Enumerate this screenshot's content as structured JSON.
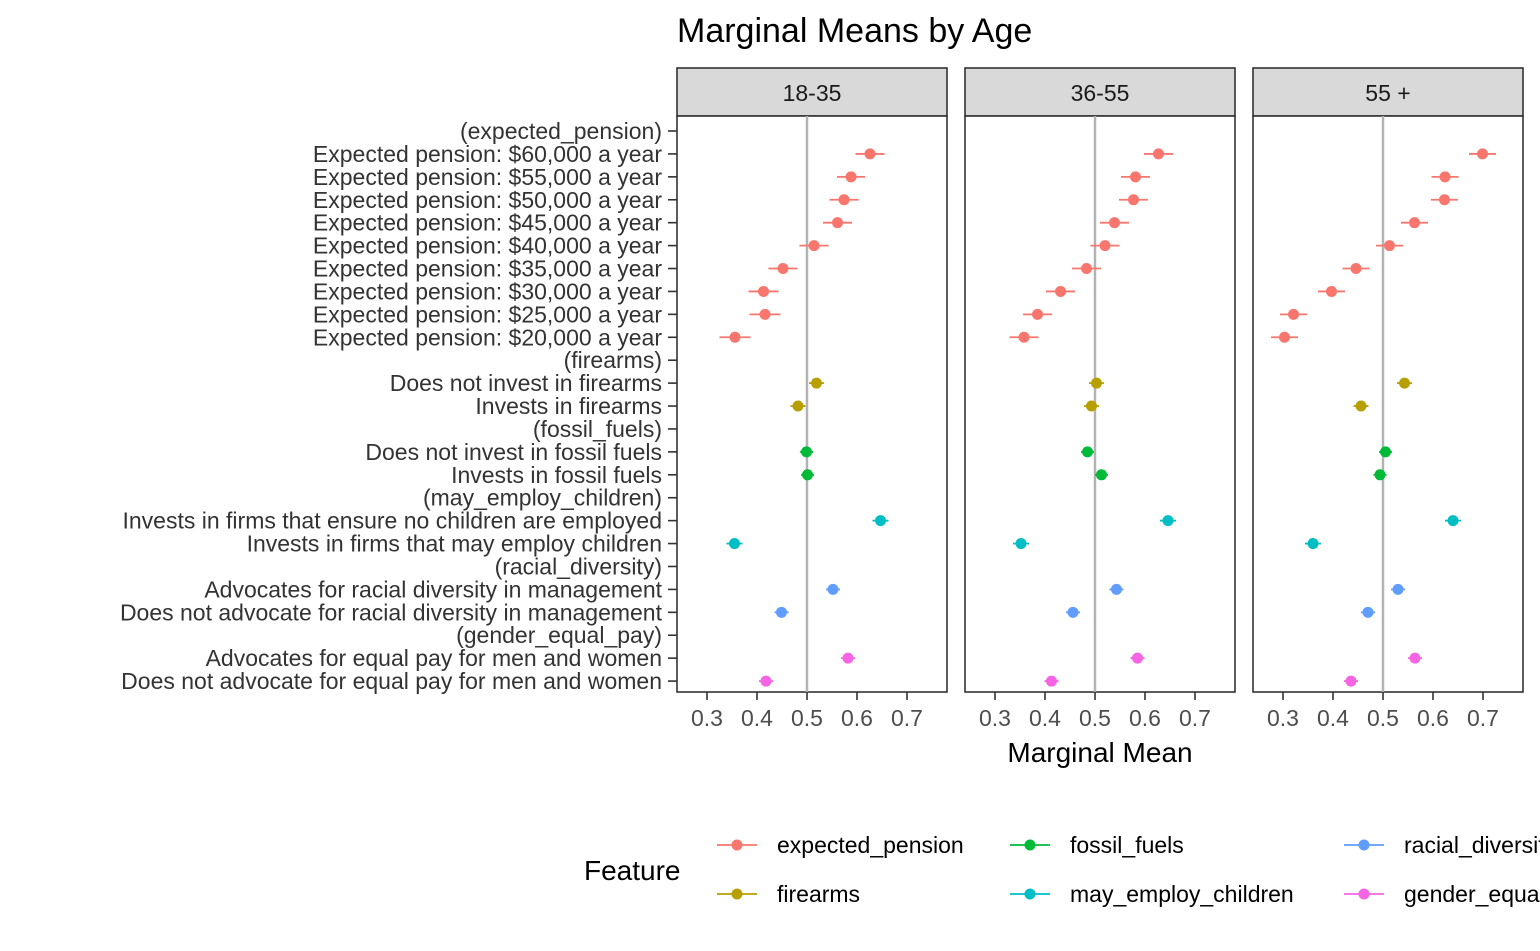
{
  "chart_data": {
    "type": "scatter",
    "title": "Marginal Means by Age",
    "xlabel": "Marginal Mean",
    "ylabel": "",
    "xlim": [
      0.24,
      0.78
    ],
    "x_ticks": [
      0.3,
      0.4,
      0.5,
      0.6,
      0.7
    ],
    "x_tick_labels": [
      "0.3",
      "0.4",
      "0.5",
      "0.6",
      "0.7"
    ],
    "reference_line": 0.5,
    "grid": false,
    "legend_title": "Feature",
    "legend_position": "bottom",
    "levels": [
      {
        "label": "(expected_pension)",
        "feature": "expected_pension",
        "header": true
      },
      {
        "label": "Expected pension: $60,000 a year",
        "feature": "expected_pension"
      },
      {
        "label": "Expected pension: $55,000 a year",
        "feature": "expected_pension"
      },
      {
        "label": "Expected pension: $50,000 a year",
        "feature": "expected_pension"
      },
      {
        "label": "Expected pension: $45,000 a year",
        "feature": "expected_pension"
      },
      {
        "label": "Expected pension: $40,000 a year",
        "feature": "expected_pension"
      },
      {
        "label": "Expected pension: $35,000 a year",
        "feature": "expected_pension"
      },
      {
        "label": "Expected pension: $30,000 a year",
        "feature": "expected_pension"
      },
      {
        "label": "Expected pension: $25,000 a year",
        "feature": "expected_pension"
      },
      {
        "label": "Expected pension: $20,000 a year",
        "feature": "expected_pension"
      },
      {
        "label": "(firearms)",
        "feature": "firearms",
        "header": true
      },
      {
        "label": "Does not invest in firearms",
        "feature": "firearms"
      },
      {
        "label": "Invests in firearms",
        "feature": "firearms"
      },
      {
        "label": "(fossil_fuels)",
        "feature": "fossil_fuels",
        "header": true
      },
      {
        "label": "Does not invest in fossil fuels",
        "feature": "fossil_fuels"
      },
      {
        "label": "Invests in fossil fuels",
        "feature": "fossil_fuels"
      },
      {
        "label": "(may_employ_children)",
        "feature": "may_employ_children",
        "header": true
      },
      {
        "label": "Invests in firms that ensure no children are employed",
        "feature": "may_employ_children"
      },
      {
        "label": "Invests in firms that may employ children",
        "feature": "may_employ_children"
      },
      {
        "label": "(racial_diversity)",
        "feature": "racial_diversity",
        "header": true
      },
      {
        "label": "Advocates for racial diversity in management",
        "feature": "racial_diversity"
      },
      {
        "label": "Does not advocate for racial diversity in management",
        "feature": "racial_diversity"
      },
      {
        "label": "(gender_equal_pay)",
        "feature": "gender_equal_pay",
        "header": true
      },
      {
        "label": "Advocates for equal pay for men and women",
        "feature": "gender_equal_pay"
      },
      {
        "label": "Does not advocate for equal pay for men and women",
        "feature": "gender_equal_pay"
      }
    ],
    "panels": [
      {
        "name": "18-35",
        "points": [
          {
            "level": 1,
            "estimate": 0.626,
            "lower": 0.597,
            "upper": 0.655
          },
          {
            "level": 2,
            "estimate": 0.588,
            "lower": 0.56,
            "upper": 0.616
          },
          {
            "level": 3,
            "estimate": 0.574,
            "lower": 0.545,
            "upper": 0.603
          },
          {
            "level": 4,
            "estimate": 0.561,
            "lower": 0.532,
            "upper": 0.59
          },
          {
            "level": 5,
            "estimate": 0.514,
            "lower": 0.485,
            "upper": 0.543
          },
          {
            "level": 6,
            "estimate": 0.452,
            "lower": 0.423,
            "upper": 0.481
          },
          {
            "level": 7,
            "estimate": 0.413,
            "lower": 0.383,
            "upper": 0.443
          },
          {
            "level": 8,
            "estimate": 0.416,
            "lower": 0.385,
            "upper": 0.447
          },
          {
            "level": 9,
            "estimate": 0.356,
            "lower": 0.325,
            "upper": 0.387
          },
          {
            "level": 11,
            "estimate": 0.519,
            "lower": 0.504,
            "upper": 0.534
          },
          {
            "level": 12,
            "estimate": 0.482,
            "lower": 0.467,
            "upper": 0.497
          },
          {
            "level": 14,
            "estimate": 0.499,
            "lower": 0.486,
            "upper": 0.512
          },
          {
            "level": 15,
            "estimate": 0.501,
            "lower": 0.488,
            "upper": 0.514
          },
          {
            "level": 17,
            "estimate": 0.647,
            "lower": 0.631,
            "upper": 0.663
          },
          {
            "level": 18,
            "estimate": 0.355,
            "lower": 0.339,
            "upper": 0.371
          },
          {
            "level": 20,
            "estimate": 0.552,
            "lower": 0.538,
            "upper": 0.566
          },
          {
            "level": 21,
            "estimate": 0.449,
            "lower": 0.435,
            "upper": 0.463
          },
          {
            "level": 23,
            "estimate": 0.582,
            "lower": 0.568,
            "upper": 0.596
          },
          {
            "level": 24,
            "estimate": 0.418,
            "lower": 0.404,
            "upper": 0.432
          }
        ]
      },
      {
        "name": "36-55",
        "points": [
          {
            "level": 1,
            "estimate": 0.627,
            "lower": 0.598,
            "upper": 0.656
          },
          {
            "level": 2,
            "estimate": 0.581,
            "lower": 0.552,
            "upper": 0.61
          },
          {
            "level": 3,
            "estimate": 0.577,
            "lower": 0.548,
            "upper": 0.606
          },
          {
            "level": 4,
            "estimate": 0.539,
            "lower": 0.51,
            "upper": 0.568
          },
          {
            "level": 5,
            "estimate": 0.52,
            "lower": 0.491,
            "upper": 0.549
          },
          {
            "level": 6,
            "estimate": 0.483,
            "lower": 0.454,
            "upper": 0.512
          },
          {
            "level": 7,
            "estimate": 0.431,
            "lower": 0.402,
            "upper": 0.46
          },
          {
            "level": 8,
            "estimate": 0.385,
            "lower": 0.356,
            "upper": 0.414
          },
          {
            "level": 9,
            "estimate": 0.358,
            "lower": 0.329,
            "upper": 0.387
          },
          {
            "level": 11,
            "estimate": 0.503,
            "lower": 0.488,
            "upper": 0.518
          },
          {
            "level": 12,
            "estimate": 0.493,
            "lower": 0.478,
            "upper": 0.508
          },
          {
            "level": 14,
            "estimate": 0.485,
            "lower": 0.472,
            "upper": 0.498
          },
          {
            "level": 15,
            "estimate": 0.513,
            "lower": 0.5,
            "upper": 0.526
          },
          {
            "level": 17,
            "estimate": 0.646,
            "lower": 0.63,
            "upper": 0.662
          },
          {
            "level": 18,
            "estimate": 0.352,
            "lower": 0.336,
            "upper": 0.368
          },
          {
            "level": 20,
            "estimate": 0.543,
            "lower": 0.529,
            "upper": 0.557
          },
          {
            "level": 21,
            "estimate": 0.456,
            "lower": 0.442,
            "upper": 0.47
          },
          {
            "level": 23,
            "estimate": 0.585,
            "lower": 0.571,
            "upper": 0.599
          },
          {
            "level": 24,
            "estimate": 0.413,
            "lower": 0.399,
            "upper": 0.427
          }
        ]
      },
      {
        "name": "55 +",
        "points": [
          {
            "level": 1,
            "estimate": 0.699,
            "lower": 0.672,
            "upper": 0.726
          },
          {
            "level": 2,
            "estimate": 0.624,
            "lower": 0.597,
            "upper": 0.651
          },
          {
            "level": 3,
            "estimate": 0.623,
            "lower": 0.596,
            "upper": 0.65
          },
          {
            "level": 4,
            "estimate": 0.563,
            "lower": 0.536,
            "upper": 0.59
          },
          {
            "level": 5,
            "estimate": 0.513,
            "lower": 0.486,
            "upper": 0.54
          },
          {
            "level": 6,
            "estimate": 0.446,
            "lower": 0.419,
            "upper": 0.473
          },
          {
            "level": 7,
            "estimate": 0.397,
            "lower": 0.37,
            "upper": 0.424
          },
          {
            "level": 8,
            "estimate": 0.321,
            "lower": 0.294,
            "upper": 0.348
          },
          {
            "level": 9,
            "estimate": 0.303,
            "lower": 0.276,
            "upper": 0.33
          },
          {
            "level": 11,
            "estimate": 0.543,
            "lower": 0.528,
            "upper": 0.558
          },
          {
            "level": 12,
            "estimate": 0.456,
            "lower": 0.441,
            "upper": 0.471
          },
          {
            "level": 14,
            "estimate": 0.505,
            "lower": 0.492,
            "upper": 0.518
          },
          {
            "level": 15,
            "estimate": 0.494,
            "lower": 0.481,
            "upper": 0.507
          },
          {
            "level": 17,
            "estimate": 0.64,
            "lower": 0.624,
            "upper": 0.656
          },
          {
            "level": 18,
            "estimate": 0.36,
            "lower": 0.344,
            "upper": 0.376
          },
          {
            "level": 20,
            "estimate": 0.53,
            "lower": 0.516,
            "upper": 0.544
          },
          {
            "level": 21,
            "estimate": 0.47,
            "lower": 0.456,
            "upper": 0.484
          },
          {
            "level": 23,
            "estimate": 0.564,
            "lower": 0.55,
            "upper": 0.578
          },
          {
            "level": 24,
            "estimate": 0.436,
            "lower": 0.422,
            "upper": 0.45
          }
        ]
      }
    ],
    "legend": [
      {
        "feature": "expected_pension",
        "label": "expected_pension",
        "color": "#F8766D"
      },
      {
        "feature": "firearms",
        "label": "firearms",
        "color": "#B79F00"
      },
      {
        "feature": "fossil_fuels",
        "label": "fossil_fuels",
        "color": "#00BA38"
      },
      {
        "feature": "may_employ_children",
        "label": "may_employ_children",
        "color": "#00BFC4"
      },
      {
        "feature": "racial_diversity",
        "label": "racial_diversity",
        "color": "#619CFF"
      },
      {
        "feature": "gender_equal_pay",
        "label": "gender_equal_pay",
        "color": "#F564E3"
      }
    ]
  }
}
